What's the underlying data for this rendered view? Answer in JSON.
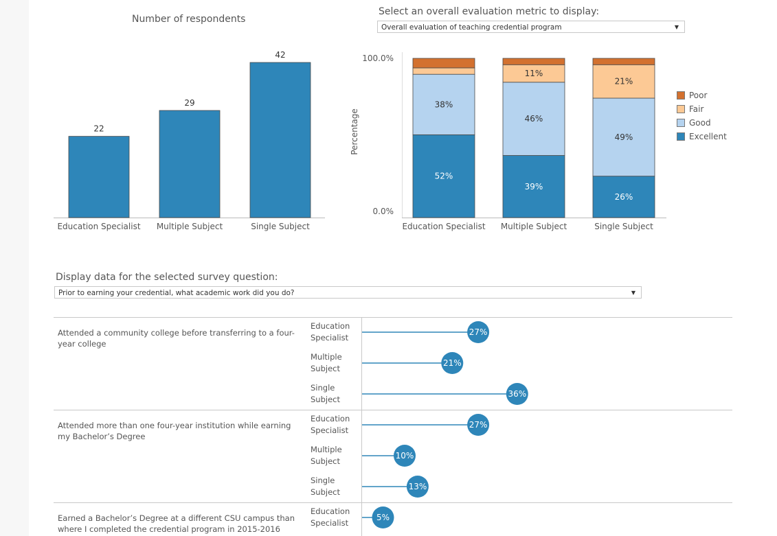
{
  "bar_chart": {
    "title": "Number of respondents"
  },
  "stack_chart": {
    "control_label": "Select an overall evaluation metric to display:",
    "dropdown_value": "Overall evaluation of teaching credential program",
    "ylabel": "Percentage",
    "ytick_top": "100.0%",
    "ytick_bottom": "0.0%",
    "legend": [
      {
        "label": "Poor",
        "color": "#d3712f"
      },
      {
        "label": "Fair",
        "color": "#fcc995"
      },
      {
        "label": "Good",
        "color": "#b5d3ef"
      },
      {
        "label": "Excellent",
        "color": "#2e86b9"
      }
    ]
  },
  "survey": {
    "control_label": "Display data for the selected survey question:",
    "dropdown_value": "Prior to earning your credential, what academic work did you do?",
    "questions": [
      {
        "label": "Attended a community college before transferring to a four-year college"
      },
      {
        "label": "Attended more than one four-year institution while earning my Bachelor’s Degree"
      },
      {
        "label": "Earned a Bachelor’s Degree at a different CSU campus than where I completed the credential program in 2015-2016"
      }
    ],
    "programs": [
      {
        "label": "Education Specialist"
      },
      {
        "label": "Multiple Subject"
      },
      {
        "label": "Single Subject"
      }
    ]
  },
  "chart_data": [
    {
      "type": "bar",
      "title": "Number of respondents",
      "categories": [
        "Education Specialist",
        "Multiple Subject",
        "Single Subject"
      ],
      "values": [
        22,
        29,
        42
      ],
      "ylim": [
        0,
        45
      ],
      "color": "#2e86b9",
      "grid": false
    },
    {
      "type": "bar",
      "stacked": true,
      "ylabel": "Percentage",
      "categories": [
        "Education Specialist",
        "Multiple Subject",
        "Single Subject"
      ],
      "ylim": [
        0,
        100
      ],
      "series": [
        {
          "name": "Excellent",
          "color": "#2e86b9",
          "values": [
            52,
            39,
            26
          ],
          "labels": [
            "52%",
            "39%",
            "26%"
          ]
        },
        {
          "name": "Good",
          "color": "#b5d3ef",
          "values": [
            38,
            46,
            49
          ],
          "labels": [
            "38%",
            "46%",
            "49%"
          ]
        },
        {
          "name": "Fair",
          "color": "#fcc995",
          "values": [
            4,
            11,
            21
          ],
          "labels": [
            "",
            "11%",
            "21%"
          ]
        },
        {
          "name": "Poor",
          "color": "#d3712f",
          "values": [
            6,
            4,
            4
          ],
          "labels": [
            "",
            "",
            ""
          ]
        }
      ],
      "legend": "right"
    },
    {
      "type": "scatter",
      "subtype": "lollipop",
      "question": "Prior to earning your credential, what academic work did you do?",
      "rows": [
        {
          "question_index": 0,
          "program": "Education Specialist",
          "value": 27,
          "label": "27%"
        },
        {
          "question_index": 0,
          "program": "Multiple Subject",
          "value": 21,
          "label": "21%"
        },
        {
          "question_index": 0,
          "program": "Single Subject",
          "value": 36,
          "label": "36%"
        },
        {
          "question_index": 1,
          "program": "Education Specialist",
          "value": 27,
          "label": "27%"
        },
        {
          "question_index": 1,
          "program": "Multiple Subject",
          "value": 10,
          "label": "10%"
        },
        {
          "question_index": 1,
          "program": "Single Subject",
          "value": 13,
          "label": "13%"
        },
        {
          "question_index": 2,
          "program": "Education Specialist",
          "value": 5,
          "label": "5%"
        }
      ],
      "color": "#2e86b9"
    }
  ]
}
